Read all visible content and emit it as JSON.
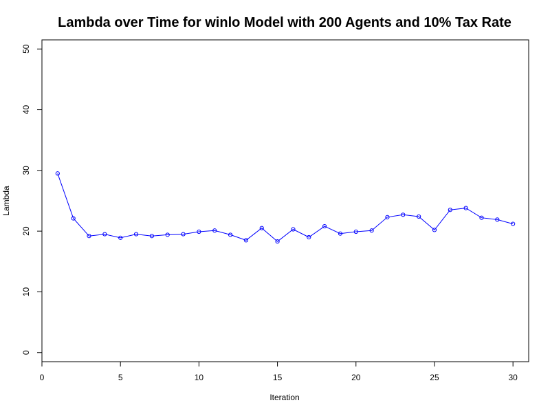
{
  "chart_data": {
    "type": "line",
    "title": "Lambda over Time for winlo Model with 200 Agents and 10% Tax Rate",
    "xlabel": "Iteration",
    "ylabel": "Lambda",
    "xlim": [
      0,
      31
    ],
    "ylim": [
      -1.5,
      51.5
    ],
    "xticks": [
      0,
      5,
      10,
      15,
      20,
      25,
      30
    ],
    "yticks": [
      0,
      10,
      20,
      30,
      40,
      50
    ],
    "grid": false,
    "legend": "none",
    "series": [
      {
        "color": "#0000ff",
        "marker": "open-circle",
        "x": [
          1,
          2,
          3,
          4,
          5,
          6,
          7,
          8,
          9,
          10,
          11,
          12,
          13,
          14,
          15,
          16,
          17,
          18,
          19,
          20,
          21,
          22,
          23,
          24,
          25,
          26,
          27,
          28,
          29,
          30
        ],
        "y": [
          29.5,
          22.1,
          19.2,
          19.5,
          18.9,
          19.5,
          19.2,
          19.4,
          19.5,
          19.9,
          20.1,
          19.4,
          18.5,
          20.5,
          18.3,
          20.3,
          19.0,
          20.8,
          19.6,
          19.9,
          20.1,
          22.3,
          22.7,
          22.4,
          20.2,
          23.5,
          23.8,
          22.2,
          21.9,
          21.2
        ]
      }
    ]
  }
}
